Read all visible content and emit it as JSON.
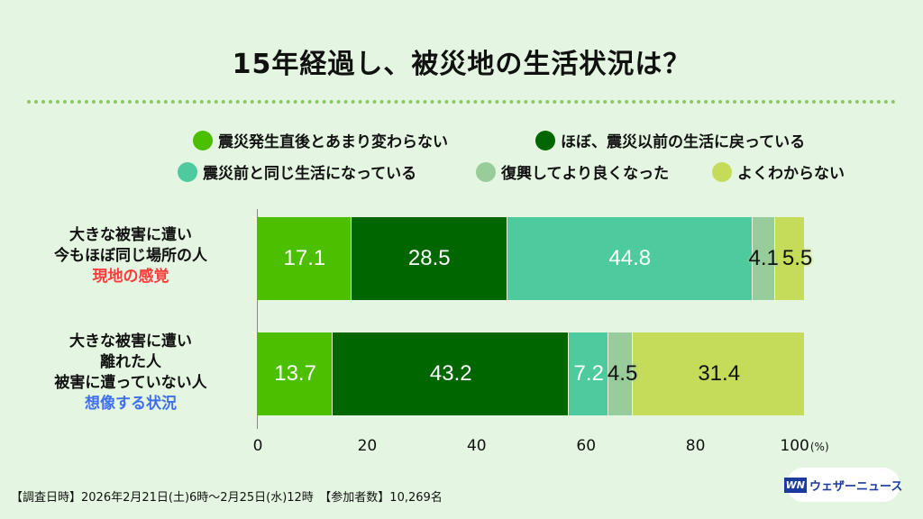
{
  "title": "15年経過し、被災地の生活状況は？",
  "chart_data": {
    "type": "bar",
    "orientation": "horizontal",
    "stacked": true,
    "title": "15年経過し、被災地の生活状況は？",
    "legend_position": "top",
    "series": [
      {
        "name": "震災発生直後とあまり変わらない",
        "color": "#4cbf00",
        "text_color": "#ffffff",
        "values": [
          17.1,
          13.7
        ]
      },
      {
        "name": "ほぼ、震災以前の生活に戻っている",
        "color": "#006600",
        "text_color": "#ffffff",
        "values": [
          28.5,
          43.2
        ]
      },
      {
        "name": "震災前と同じ生活になっている",
        "color": "#4ecb9e",
        "text_color": "#ffffff",
        "values": [
          44.8,
          7.2
        ]
      },
      {
        "name": "復興してより良くなった",
        "color": "#98cc9a",
        "text_color": "#111111",
        "values": [
          4.1,
          4.5
        ]
      },
      {
        "name": "よくわからない",
        "color": "#c5dc5a",
        "text_color": "#111111",
        "values": [
          5.5,
          31.4
        ]
      }
    ],
    "categories": [
      {
        "lines": [
          "大きな被害に遭い",
          "今もほぼ同じ場所の人"
        ],
        "tag": "現地の感覚",
        "tag_color": "#ff3b3b"
      },
      {
        "lines": [
          "大きな被害に遭い",
          "離れた人",
          "被害に遭っていない人"
        ],
        "tag": "想像する状況",
        "tag_color": "#3f6ff0"
      }
    ],
    "xlim": [
      0,
      100
    ],
    "xticks": [
      "0",
      "20",
      "40",
      "60",
      "80",
      "100"
    ],
    "xunit": "(%)"
  },
  "footer": "【調査日時】2026年2月21日(土)6時～2月25日(水)12時　【参加者数】10,269名",
  "logo": {
    "mark": "WN",
    "text": "ウェザーニュース"
  }
}
